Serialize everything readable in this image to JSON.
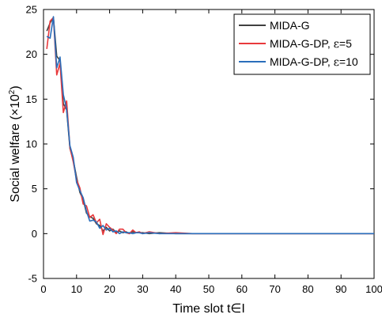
{
  "chart_data": {
    "type": "line",
    "xlabel": "Time slot t∈I",
    "ylabel_main": "Social welfare (×10",
    "ylabel_exp": "2",
    "ylabel_close": ")",
    "xlim": [
      0,
      100
    ],
    "ylim": [
      -5,
      25
    ],
    "xticks": [
      0,
      10,
      20,
      30,
      40,
      50,
      60,
      70,
      80,
      90,
      100
    ],
    "yticks": [
      -5,
      0,
      5,
      10,
      15,
      20,
      25
    ],
    "grid": false,
    "legend_position": "top-right",
    "series": [
      {
        "name": "MIDA-G",
        "color": "#404040",
        "x": [
          1,
          2,
          3,
          4,
          5,
          6,
          7,
          8,
          9,
          10,
          11,
          12,
          13,
          14,
          15,
          16,
          17,
          18,
          19,
          20,
          21,
          22,
          23,
          24,
          25,
          26,
          27,
          28,
          29,
          30,
          32,
          35,
          40,
          45,
          50,
          60,
          70,
          80,
          90,
          100
        ],
        "y": [
          22.6,
          23.5,
          24.1,
          19.8,
          19.3,
          14.5,
          13.8,
          9.5,
          8.2,
          6.3,
          4.6,
          3.8,
          2.3,
          1.9,
          1.7,
          1.1,
          0.9,
          0.3,
          0.7,
          0.3,
          0.5,
          0.1,
          0.3,
          0.1,
          0.2,
          0.0,
          0.2,
          0.1,
          0.1,
          0.1,
          0.0,
          0.1,
          0.0,
          0.0,
          0.0,
          0.0,
          0.0,
          0.0,
          0.0,
          0.0
        ]
      },
      {
        "name": "MIDA-G-DP, ε=5",
        "name_prefix": "MIDA-G-DP, ",
        "name_epsilon": "ε",
        "name_suffix": "=5",
        "color": "#e8393c",
        "x": [
          1,
          2,
          3,
          4,
          5,
          6,
          7,
          8,
          9,
          10,
          11,
          12,
          13,
          14,
          15,
          16,
          17,
          18,
          19,
          20,
          21,
          22,
          23,
          24,
          25,
          26,
          27,
          28,
          29,
          30,
          32,
          35,
          40,
          45,
          50,
          60,
          70,
          80,
          90,
          100
        ],
        "y": [
          20.6,
          23.7,
          24.1,
          17.7,
          19.0,
          13.5,
          14.8,
          9.6,
          8.0,
          6.0,
          5.1,
          3.3,
          3.1,
          1.8,
          2.1,
          1.2,
          1.6,
          -0.1,
          1.1,
          0.7,
          0.4,
          0.0,
          0.5,
          0.5,
          0.1,
          0.0,
          0.4,
          0.1,
          0.2,
          0.0,
          0.2,
          0.0,
          0.1,
          0.0,
          0.0,
          0.0,
          0.0,
          0.0,
          0.0,
          0.0
        ]
      },
      {
        "name": "MIDA-G-DP, ε=10",
        "name_prefix": "MIDA-G-DP, ",
        "name_epsilon": "ε",
        "name_suffix": "=10",
        "color": "#2a6ebb",
        "x": [
          1,
          2,
          3,
          4,
          5,
          6,
          7,
          8,
          9,
          10,
          11,
          12,
          13,
          14,
          15,
          16,
          17,
          18,
          19,
          20,
          21,
          22,
          23,
          24,
          25,
          26,
          27,
          28,
          29,
          30,
          32,
          35,
          40,
          45,
          50,
          60,
          70,
          80,
          90,
          100
        ],
        "y": [
          22.0,
          21.8,
          24.2,
          18.5,
          19.7,
          15.5,
          13.9,
          9.8,
          8.5,
          5.7,
          4.8,
          4.0,
          2.5,
          1.4,
          1.5,
          1.3,
          0.6,
          0.9,
          0.4,
          0.6,
          0.2,
          0.3,
          0.0,
          0.2,
          0.1,
          0.1,
          0.0,
          0.1,
          0.1,
          0.0,
          0.1,
          0.0,
          0.0,
          0.0,
          0.0,
          0.0,
          0.0,
          0.0,
          0.0,
          0.0
        ]
      }
    ]
  }
}
